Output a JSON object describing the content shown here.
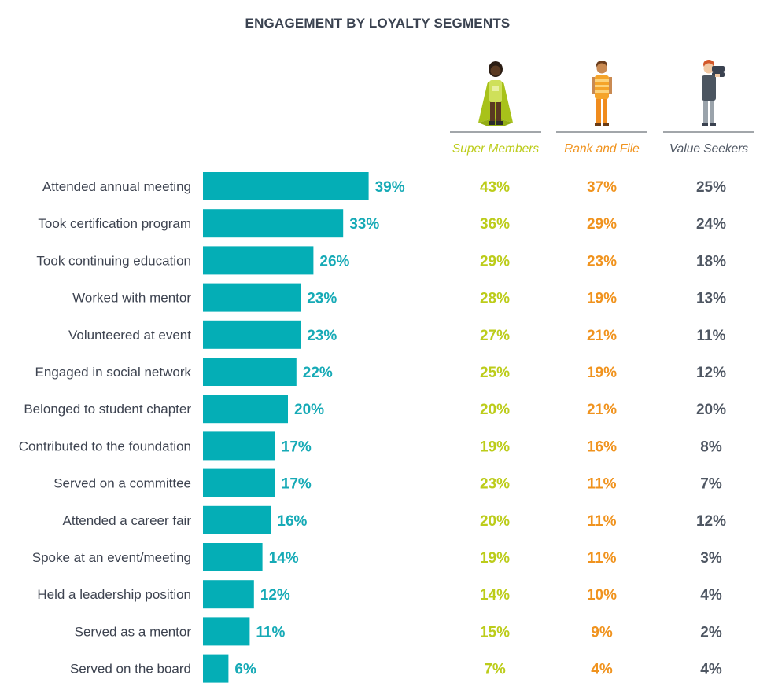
{
  "title": "ENGAGEMENT BY LOYALTY SEGMENTS",
  "colors": {
    "bar": "#04aeb6",
    "bar_value": "#16aab6",
    "super_members": "#bccc1a",
    "rank_and_file": "#f0931e",
    "value_seekers": "#4f5763",
    "label": "#3d4350"
  },
  "icons": [
    "caped-hero-icon",
    "person-striped-shirt-icon",
    "person-binoculars-icon"
  ],
  "chart_data": {
    "type": "bar",
    "orientation": "horizontal",
    "title": "ENGAGEMENT BY LOYALTY SEGMENTS",
    "xlabel": "",
    "ylabel": "",
    "xlim": [
      0,
      100
    ],
    "grid": false,
    "categories": [
      "Attended annual meeting",
      "Took certification program",
      "Took continuing education",
      "Worked with mentor",
      "Volunteered at event",
      "Engaged in social network",
      "Belonged to student chapter",
      "Contributed to the foundation",
      "Served on a committee",
      "Attended a career fair",
      "Spoke at an event/meeting",
      "Held a leadership position",
      "Served as a mentor",
      "Served on the board"
    ],
    "values": [
      39,
      33,
      26,
      23,
      23,
      22,
      20,
      17,
      17,
      16,
      14,
      12,
      11,
      6
    ],
    "value_labels": [
      "39%",
      "33%",
      "26%",
      "23%",
      "23%",
      "22%",
      "20%",
      "17%",
      "17%",
      "16%",
      "14%",
      "12%",
      "11%",
      "6%"
    ],
    "segments": [
      {
        "name": "Super Members",
        "values": [
          43,
          36,
          29,
          28,
          27,
          25,
          20,
          19,
          23,
          20,
          19,
          14,
          15,
          7
        ],
        "labels": [
          "43%",
          "36%",
          "29%",
          "28%",
          "27%",
          "25%",
          "20%",
          "19%",
          "23%",
          "20%",
          "19%",
          "14%",
          "15%",
          "7%"
        ]
      },
      {
        "name": "Rank and File",
        "values": [
          37,
          29,
          23,
          19,
          21,
          19,
          21,
          16,
          11,
          11,
          11,
          10,
          9,
          4
        ],
        "labels": [
          "37%",
          "29%",
          "23%",
          "19%",
          "21%",
          "19%",
          "21%",
          "16%",
          "11%",
          "11%",
          "11%",
          "10%",
          "9%",
          "4%"
        ]
      },
      {
        "name": "Value Seekers",
        "values": [
          25,
          24,
          18,
          13,
          11,
          12,
          20,
          8,
          7,
          12,
          3,
          4,
          2,
          4
        ],
        "labels": [
          "25%",
          "24%",
          "18%",
          "13%",
          "11%",
          "12%",
          "20%",
          "8%",
          "7%",
          "12%",
          "3%",
          "4%",
          "2%",
          "4%"
        ]
      }
    ]
  }
}
